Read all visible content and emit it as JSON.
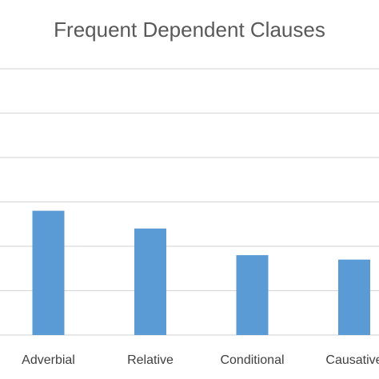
{
  "chart_data": {
    "type": "bar",
    "title": "Frequent Dependent Clauses",
    "categories": [
      "Adverbial",
      "Relative",
      "Conditional",
      "Causative"
    ],
    "values": [
      28,
      24,
      18,
      17
    ],
    "ylim": [
      0,
      60
    ],
    "grid": true,
    "bar_color": "#5b9bd5",
    "grid_color": "#d9d9d9",
    "text_color": "#595959"
  }
}
